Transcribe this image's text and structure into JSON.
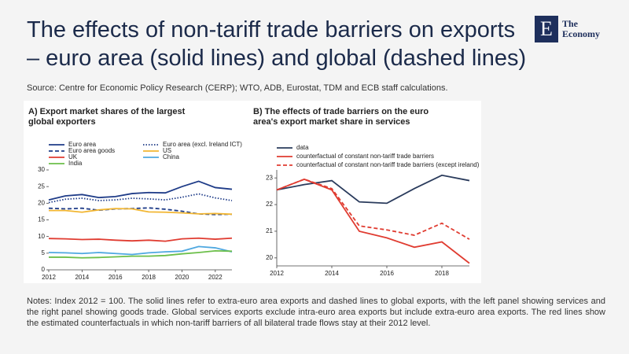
{
  "title": "The effects of non-tariff trade barriers on exports – euro area (solid lines) and global (dashed lines)",
  "source": "Source: Centre for Economic Policy Research (CERP); WTO, ADB, Eurostat, TDM and ECB staff calculations.",
  "notes": "Notes: Index 2012 = 100. The solid lines refer to extra-euro area exports and dashed lines to global exports, with the left panel showing services and the right panel showing goods trade. Global services exports exclude intra-euro area exports but include extra-euro area exports. The red lines show the estimated counterfactuals in which non-tariff barriers of all bilateral trade flows stay at their 2012 level.",
  "logo": {
    "mark": "E",
    "name": "The Economy"
  },
  "chart_data": [
    {
      "type": "line",
      "title": "A)  Export market shares of the largest global exporters",
      "x": [
        2012,
        2013,
        2014,
        2015,
        2016,
        2017,
        2018,
        2019,
        2020,
        2021,
        2022,
        2023
      ],
      "xlim": [
        2012,
        2023
      ],
      "xticks": [
        2012,
        2014,
        2016,
        2018,
        2020,
        2022
      ],
      "ylim": [
        0,
        30
      ],
      "yticks": [
        0,
        5,
        10,
        15,
        20,
        25,
        30
      ],
      "series": [
        {
          "name": "Euro area",
          "color": "#1f3c88",
          "dash": "solid",
          "values": [
            21,
            22.2,
            22.6,
            21.7,
            22,
            22.9,
            23.2,
            23.1,
            25,
            26.6,
            24.7,
            24.2
          ]
        },
        {
          "name": "Euro area (excl. Ireland ICT)",
          "color": "#1f3c88",
          "dash": "dotted",
          "values": [
            20.2,
            21.2,
            21.5,
            20.8,
            21,
            21.5,
            21.3,
            21,
            21.8,
            22.8,
            21.6,
            20.8
          ]
        },
        {
          "name": "Euro area goods",
          "color": "#1f3c88",
          "dash": "dashed",
          "values": [
            18.5,
            18.3,
            18.5,
            17.9,
            18.3,
            18.4,
            18.6,
            18.2,
            17.6,
            16.8,
            16.6,
            16.7
          ]
        },
        {
          "name": "US",
          "color": "#f2b632",
          "dash": "solid",
          "values": [
            17.8,
            17.8,
            17.3,
            18,
            18.4,
            18.3,
            17.4,
            17.3,
            17.1,
            16.8,
            16.9,
            16.7
          ]
        },
        {
          "name": "UK",
          "color": "#e03c31",
          "dash": "solid",
          "values": [
            9.4,
            9.3,
            9.1,
            9.2,
            8.9,
            8.7,
            8.9,
            8.6,
            9.3,
            9.5,
            9.2,
            9.5
          ]
        },
        {
          "name": "China",
          "color": "#4fa8e0",
          "dash": "solid",
          "values": [
            5.2,
            5.1,
            4.9,
            5.2,
            4.9,
            4.6,
            5.1,
            5.4,
            5.6,
            7,
            6.6,
            5.4
          ]
        },
        {
          "name": "India",
          "color": "#6cbf4a",
          "dash": "solid",
          "values": [
            3.8,
            3.8,
            3.6,
            3.7,
            3.9,
            4.1,
            4.1,
            4.3,
            4.8,
            5.2,
            5.7,
            5.6
          ]
        }
      ]
    },
    {
      "type": "line",
      "title": "B)  The effects of trade barriers on the euro area's export market share in services",
      "x": [
        2012,
        2013,
        2014,
        2015,
        2016,
        2017,
        2018,
        2019
      ],
      "xlim": [
        2012,
        2019
      ],
      "xticks": [
        2012,
        2014,
        2016,
        2018
      ],
      "ylim": [
        19.7,
        23.3
      ],
      "yticks": [
        20,
        21,
        22,
        23
      ],
      "series": [
        {
          "name": "data",
          "color": "#2a3b5c",
          "dash": "solid",
          "values": [
            22.55,
            22.75,
            22.9,
            22.1,
            22.05,
            22.6,
            23.1,
            22.9
          ]
        },
        {
          "name": "counterfactual of constant non-tariff trade barriers",
          "color": "#e03c31",
          "dash": "solid",
          "values": [
            22.55,
            22.95,
            22.55,
            21.0,
            20.75,
            20.4,
            20.6,
            19.8
          ]
        },
        {
          "name": "counterfactual of constant non-tariff trade barriers (except ireland)",
          "color": "#e03c31",
          "dash": "dashed",
          "values": [
            22.55,
            22.95,
            22.6,
            21.2,
            21.05,
            20.85,
            21.3,
            20.7
          ]
        }
      ]
    }
  ]
}
